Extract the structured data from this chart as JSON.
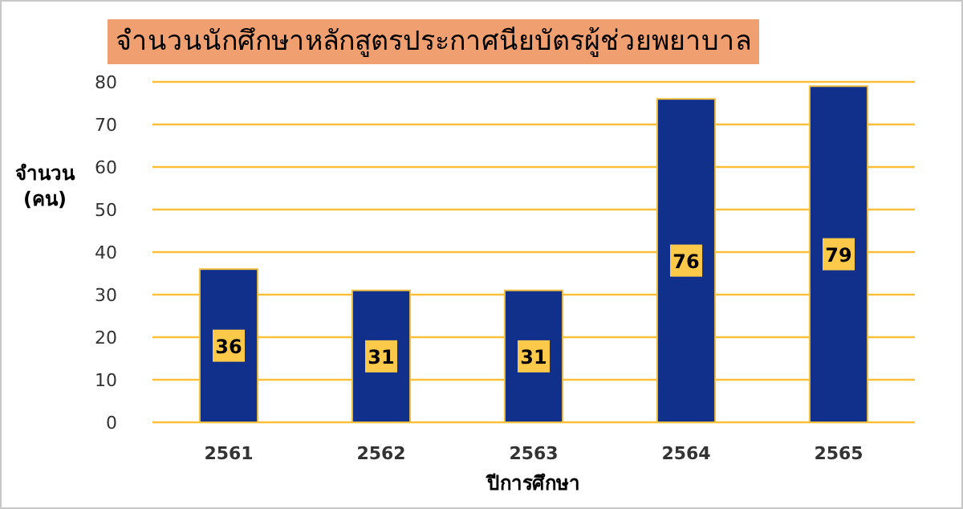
{
  "chart_data": {
    "type": "bar",
    "title": "จำนวนนักศึกษาหลักสูตรประกาศนียบัตรผู้ช่วยพยาบาล",
    "xlabel": "ปีการศึกษา",
    "ylabel": "จำนวน (คน)",
    "categories": [
      "2561",
      "2562",
      "2563",
      "2564",
      "2565"
    ],
    "values": [
      36,
      31,
      31,
      76,
      79
    ],
    "color": "#10308c",
    "ylim": [
      0,
      80
    ],
    "yticks": [
      0,
      10,
      20,
      30,
      40,
      50,
      60,
      70,
      80
    ],
    "grid": "y",
    "data_labels": true
  }
}
